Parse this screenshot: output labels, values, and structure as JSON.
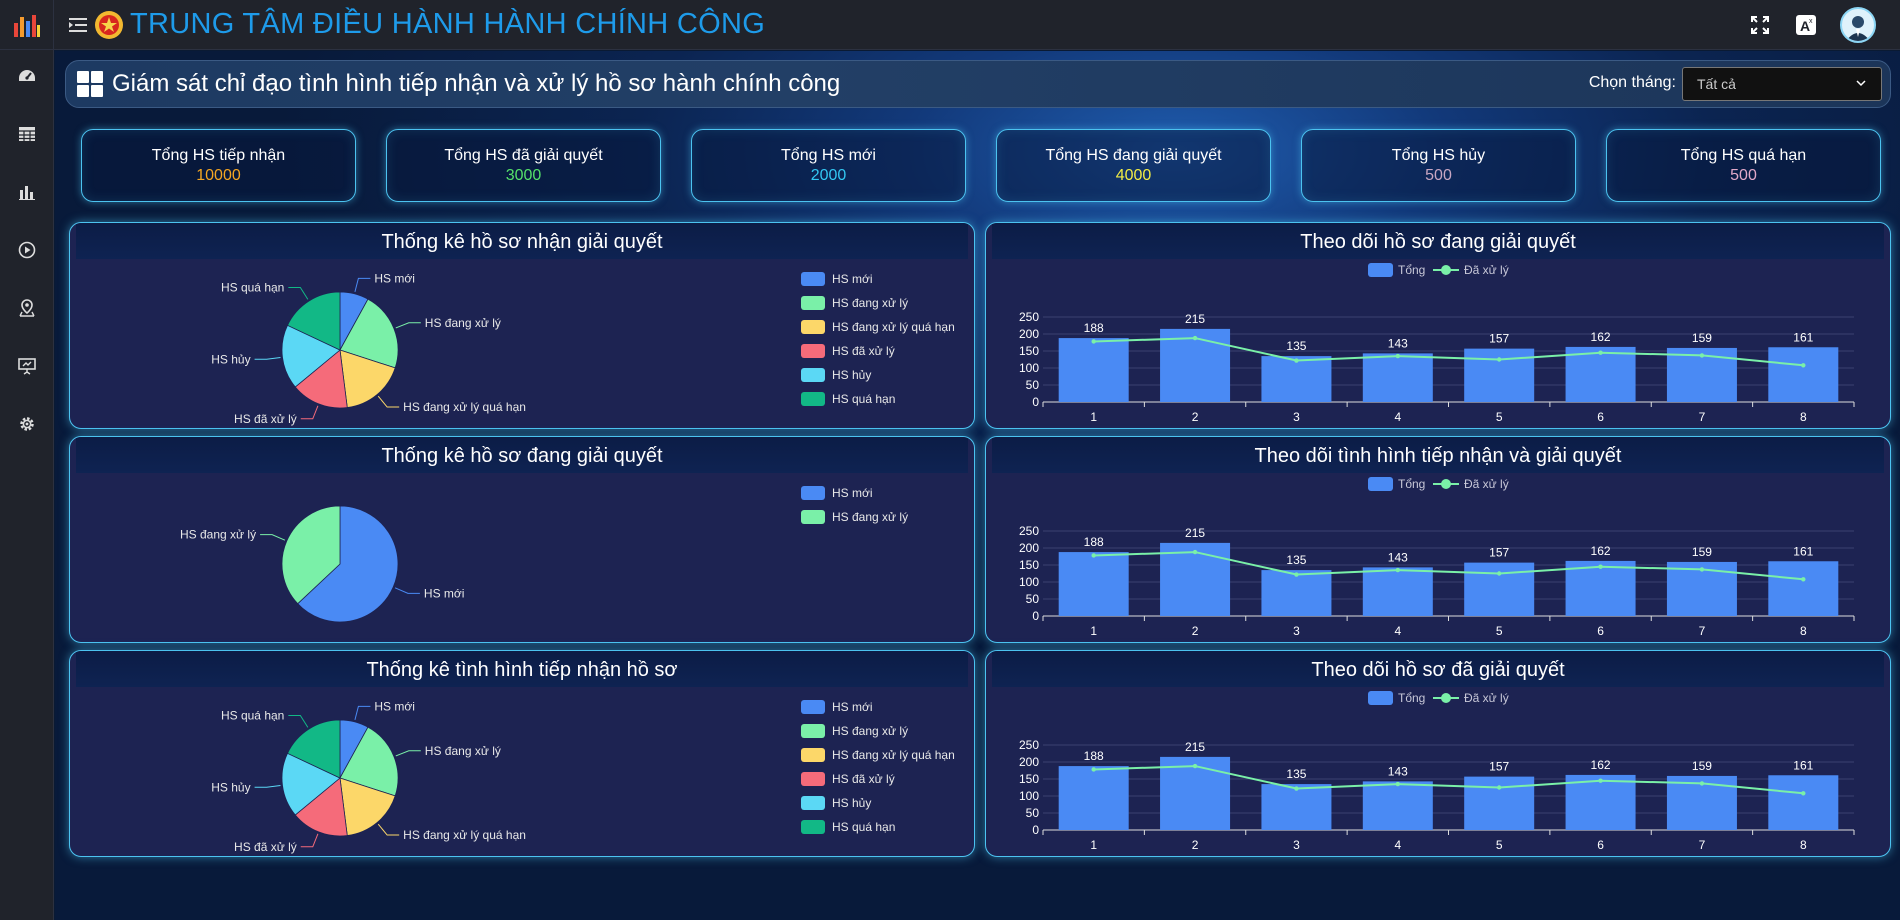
{
  "app": {
    "title": "TRUNG TÂM ĐIỀU HÀNH HÀNH CHÍNH CÔNG"
  },
  "sidebar": {
    "items": [
      {
        "icon": "dashboard-icon"
      },
      {
        "icon": "table-icon"
      },
      {
        "icon": "bar-chart-icon"
      },
      {
        "icon": "play-circle-icon"
      },
      {
        "icon": "map-pin-icon"
      },
      {
        "icon": "presentation-icon"
      },
      {
        "icon": "settings-gear-icon"
      }
    ]
  },
  "header": {
    "title": "Giám sát chỉ đạo tình hình tiếp nhận và xử lý hồ sơ hành chính công",
    "month_label": "Chọn tháng:",
    "month_value": "Tất cả"
  },
  "stats": [
    {
      "label": "Tổng HS tiếp nhận",
      "value": "10000",
      "color": "#f5a623"
    },
    {
      "label": "Tổng HS đã giải quyết",
      "value": "3000",
      "color": "#55e16a"
    },
    {
      "label": "Tổng HS mới",
      "value": "2000",
      "color": "#33c7f2"
    },
    {
      "label": "Tổng HS đang giải quyết",
      "value": "4000",
      "color": "#f1ec45"
    },
    {
      "label": "Tổng HS hủy",
      "value": "500",
      "color": "#c8a6c2"
    },
    {
      "label": "Tổng HS quá hạn",
      "value": "500",
      "color": "#e2a9c9"
    }
  ],
  "panels": {
    "p1": {
      "title": "Thống kê hồ sơ nhận giải quyết"
    },
    "p2": {
      "title": "Theo dõi hồ sơ đang giải quyết"
    },
    "p3": {
      "title": "Thống kê hồ sơ đang giải quyết"
    },
    "p4": {
      "title": "Theo dõi tình hình tiếp nhận và giải quyết"
    },
    "p5": {
      "title": "Thống kê tình hình tiếp nhận hồ sơ"
    },
    "p6": {
      "title": "Theo dõi hồ sơ đã giải quyết"
    }
  },
  "chart_data": [
    {
      "id": "p1",
      "type": "pie",
      "labels": [
        "HS mới",
        "HS đang xử lý",
        "HS đang xử lý quá hạn",
        "HS đã xử lý",
        "HS hủy",
        "HS quá hạn"
      ],
      "values": [
        8,
        22,
        18,
        16,
        18,
        18
      ],
      "colors": [
        "#4a8af4",
        "#7af0a8",
        "#fcd769",
        "#f56b7a",
        "#5bd8f5",
        "#12b886"
      ]
    },
    {
      "id": "p2",
      "type": "bar",
      "categories": [
        "1",
        "2",
        "3",
        "4",
        "5",
        "6",
        "7",
        "8"
      ],
      "series": [
        {
          "name": "Tổng",
          "type": "bar",
          "values": [
            188,
            215,
            135,
            143,
            157,
            162,
            159,
            161
          ],
          "color": "#4a8af4"
        },
        {
          "name": "Đã xử lý",
          "type": "line",
          "values": [
            178,
            188,
            122,
            135,
            125,
            145,
            137,
            108
          ],
          "color": "#7af0a8"
        }
      ],
      "y_ticks": [
        0,
        50,
        100,
        150,
        200,
        250
      ],
      "ylim": [
        0,
        250
      ]
    },
    {
      "id": "p3",
      "type": "pie",
      "labels": [
        "HS mới",
        "HS đang xử lý"
      ],
      "values": [
        63,
        37
      ],
      "colors": [
        "#4a8af4",
        "#7af0a8"
      ]
    },
    {
      "id": "p4",
      "type": "bar",
      "categories": [
        "1",
        "2",
        "3",
        "4",
        "5",
        "6",
        "7",
        "8"
      ],
      "series": [
        {
          "name": "Tổng",
          "type": "bar",
          "values": [
            188,
            215,
            135,
            143,
            157,
            162,
            159,
            161
          ],
          "color": "#4a8af4"
        },
        {
          "name": "Đã xử lý",
          "type": "line",
          "values": [
            178,
            188,
            122,
            135,
            125,
            145,
            137,
            108
          ],
          "color": "#7af0a8"
        }
      ],
      "y_ticks": [
        0,
        50,
        100,
        150,
        200,
        250
      ],
      "ylim": [
        0,
        250
      ]
    },
    {
      "id": "p5",
      "type": "pie",
      "labels": [
        "HS mới",
        "HS đang xử lý",
        "HS đang xử lý quá hạn",
        "HS đã xử lý",
        "HS hủy",
        "HS quá hạn"
      ],
      "values": [
        8,
        22,
        18,
        16,
        18,
        18
      ],
      "colors": [
        "#4a8af4",
        "#7af0a8",
        "#fcd769",
        "#f56b7a",
        "#5bd8f5",
        "#12b886"
      ]
    },
    {
      "id": "p6",
      "type": "bar",
      "categories": [
        "1",
        "2",
        "3",
        "4",
        "5",
        "6",
        "7",
        "8"
      ],
      "series": [
        {
          "name": "Tổng",
          "type": "bar",
          "values": [
            188,
            215,
            135,
            143,
            157,
            162,
            159,
            161
          ],
          "color": "#4a8af4"
        },
        {
          "name": "Đã xử lý",
          "type": "line",
          "values": [
            178,
            188,
            122,
            135,
            125,
            145,
            137,
            108
          ],
          "color": "#7af0a8"
        }
      ],
      "y_ticks": [
        0,
        50,
        100,
        150,
        200,
        250
      ],
      "ylim": [
        0,
        250
      ]
    }
  ]
}
